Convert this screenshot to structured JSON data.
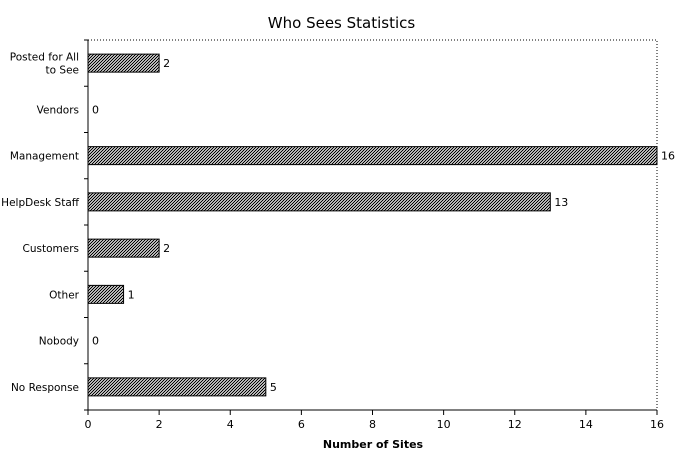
{
  "chart_data": {
    "type": "bar",
    "orientation": "horizontal",
    "title": "Who Sees Statistics",
    "xlabel": "Number of Sites",
    "ylabel": "",
    "xlim": [
      0,
      16
    ],
    "x_ticks": [
      0,
      2,
      4,
      6,
      8,
      10,
      12,
      14,
      16
    ],
    "grid": false,
    "legend": "none",
    "categories": [
      [
        "Posted for All",
        "to See"
      ],
      [
        "Vendors"
      ],
      [
        "Management"
      ],
      [
        "HelpDesk Staff"
      ],
      [
        "Customers"
      ],
      [
        "Other"
      ],
      [
        "Nobody"
      ],
      [
        "No Response"
      ]
    ],
    "values": [
      2,
      0,
      16,
      13,
      2,
      1,
      0,
      5
    ],
    "data_labels": [
      "2",
      "0",
      "16",
      "13",
      "2",
      "1",
      "0",
      "5"
    ],
    "colors": {
      "bar_fill": "#8c8c8c",
      "bar_stroke": "#000000",
      "axis": "#000000",
      "background": "#ffffff"
    }
  }
}
